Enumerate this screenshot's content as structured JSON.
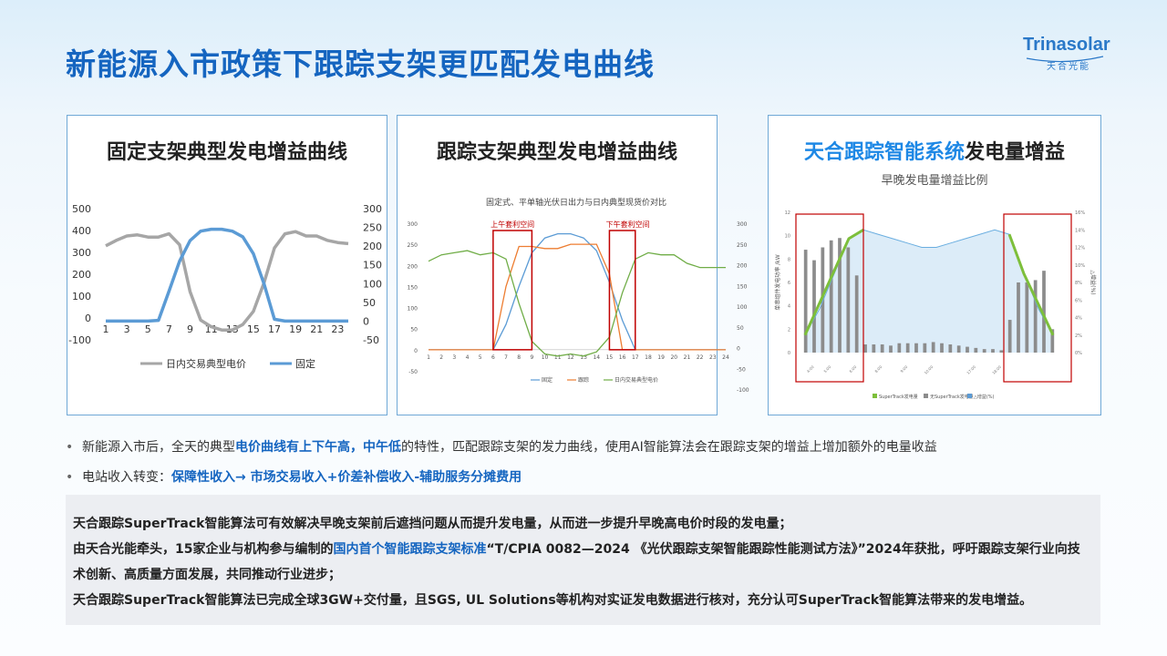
{
  "header": {
    "title": "新能源入市政策下跟踪支架更匹配发电曲线",
    "logo_text": "Trinasolar",
    "logo_sub": "天合光能"
  },
  "panels": {
    "p1": {
      "title": "固定支架典型发电增益曲线"
    },
    "p2": {
      "title": "跟踪支架典型发电增益曲线"
    },
    "p3": {
      "title_hl": "天合跟踪智能系统",
      "title_rest": "发电量增益",
      "subtitle": "早晚发电量增益比例"
    }
  },
  "bullets": {
    "b1": {
      "pre": "新能源入市后，全天的典型",
      "em": "电价曲线有上下午高，中午低",
      "post": "的特性，匹配跟踪支架的发力曲线，使用AI智能算法会在跟踪支架的增益上增加额外的电量收益"
    },
    "b2": {
      "pre": "电站收入转变：",
      "em": "保障性收入→ 市场交易收入+价差补偿收入-辅助服务分摊费用"
    }
  },
  "box": {
    "l1": "天合跟踪SuperTrack智能算法可有效解决早晚支架前后遮挡问题从而提升发电量，从而进一步提升早晚高电价时段的发电量；",
    "l2_pre": "由天合光能牵头，15家企业与机构参与编制的",
    "l2_em": "国内首个智能跟踪支架标准",
    "l2_post": "“T/CPIA 0082—2024 《光伏跟踪支架智能跟踪性能测试方法》”2024年获批，呼吁跟踪支架行业向技术创新、高质量方面发展，共同推动行业进步；",
    "l3": "天合跟踪SuperTrack智能算法已完成全球3GW+交付量，且SGS, UL Solutions等机构对实证发电数据进行核对，充分认可SuperTrack智能算法带来的发电增益。"
  },
  "colors": {
    "title": "#1565c0",
    "price": "#a6a6a6",
    "fixed": "#5b9bd5",
    "tracker": "#ed7d31",
    "price2": "#70ad47",
    "bar": "#8c8c8c",
    "green": "#7dbf3b",
    "red": "#c00000"
  },
  "chart_data": [
    {
      "type": "line",
      "x": [
        1,
        2,
        3,
        4,
        5,
        6,
        7,
        8,
        9,
        10,
        11,
        12,
        13,
        14,
        15,
        16,
        17,
        18,
        19,
        20,
        21,
        22,
        23,
        24
      ],
      "x_ticks": [
        "1",
        "3",
        "5",
        "7",
        "9",
        "11",
        "13",
        "15",
        "17",
        "19",
        "21",
        "23"
      ],
      "y_ticks_left": [
        "500",
        "400",
        "300",
        "200",
        "100",
        "0",
        "-100"
      ],
      "y_ticks_right": [
        "300",
        "250",
        "200",
        "150",
        "100",
        "50",
        "0",
        "-50"
      ],
      "ylim_left": [
        -100,
        500
      ],
      "ylim_right": [
        -50,
        300
      ],
      "legend_position": "bottom",
      "series": [
        {
          "name": "日内交易典型电价",
          "axis": "left",
          "values": [
            330,
            355,
            375,
            380,
            370,
            370,
            385,
            335,
            120,
            -10,
            -40,
            -55,
            -55,
            -30,
            30,
            160,
            320,
            385,
            395,
            375,
            375,
            355,
            345,
            340
          ]
        },
        {
          "name": "固定",
          "axis": "right",
          "values": [
            0,
            0,
            0,
            0,
            0,
            2,
            80,
            160,
            215,
            240,
            245,
            245,
            240,
            225,
            180,
            100,
            5,
            0,
            0,
            0,
            0,
            0,
            0,
            0
          ]
        }
      ]
    },
    {
      "type": "line",
      "title": "固定式、平单轴光伏日出力与日内典型现货价对比",
      "x_ticks": [
        "1",
        "2",
        "3",
        "4",
        "5",
        "6",
        "7",
        "8",
        "9",
        "10",
        "11",
        "12",
        "13",
        "14",
        "15",
        "16",
        "17",
        "18",
        "19",
        "20",
        "21",
        "22",
        "23",
        "24"
      ],
      "y_ticks_left": [
        "300",
        "250",
        "200",
        "150",
        "100",
        "50",
        "0",
        "-50"
      ],
      "y_ticks_right": [
        "300",
        "250",
        "200",
        "150",
        "100",
        "50",
        "0",
        "-50",
        "-100"
      ],
      "annotations": [
        "上午套利空间",
        "下午套利空间"
      ],
      "legend_position": "bottom",
      "series": [
        {
          "name": "固定",
          "axis": "left",
          "values": [
            0,
            0,
            0,
            0,
            0,
            0,
            60,
            150,
            230,
            265,
            275,
            275,
            265,
            235,
            160,
            70,
            0,
            0,
            0,
            0,
            0,
            0,
            0,
            0
          ]
        },
        {
          "name": "跟踪",
          "axis": "left",
          "values": [
            0,
            0,
            0,
            0,
            0,
            0,
            150,
            245,
            245,
            240,
            240,
            250,
            250,
            250,
            180,
            0,
            0,
            0,
            0,
            0,
            0,
            0,
            0,
            0
          ]
        },
        {
          "name": "日内交易典型电价",
          "axis": "right",
          "values": [
            210,
            225,
            230,
            235,
            225,
            230,
            215,
            110,
            20,
            -10,
            -15,
            -10,
            -15,
            -5,
            30,
            135,
            215,
            230,
            225,
            225,
            205,
            195,
            195,
            195
          ]
        }
      ]
    },
    {
      "type": "bar",
      "y_ticks_left": [
        "12",
        "10",
        "8",
        "6",
        "4",
        "2",
        "0"
      ],
      "y_ticks_right": [
        "16%",
        "14%",
        "12%",
        "10%",
        "8%",
        "6%",
        "4%",
        "2%",
        "0%"
      ],
      "ylabel": "单串组件发电功率 /kW",
      "ylabel_right": "△增益(%)",
      "x_ticks": [
        "4:00",
        "5:00",
        "6:00",
        "8:00",
        "9:00",
        "10:00",
        "17:00",
        "18:00"
      ],
      "legend": [
        "SuperTrack发电量",
        "无SuperTrack发电量",
        "△增益(%)"
      ],
      "legend_position": "bottom",
      "bar_values": [
        8.8,
        7.9,
        9.0,
        9.6,
        9.8,
        9.0,
        6.6,
        0.7,
        0.7,
        0.7,
        0.6,
        0.8,
        0.8,
        0.8,
        0.8,
        0.9,
        0.8,
        0.7,
        0.6,
        0.5,
        0.4,
        0.3,
        0.3,
        0.2,
        2.8,
        6.0,
        6.0,
        6.2,
        7.0,
        2.0
      ],
      "gain_values": [
        2,
        5,
        9,
        13,
        14,
        13.5,
        13,
        12.5,
        12,
        12,
        12.5,
        13,
        13.5,
        14,
        13.5,
        9,
        5,
        2
      ]
    }
  ]
}
